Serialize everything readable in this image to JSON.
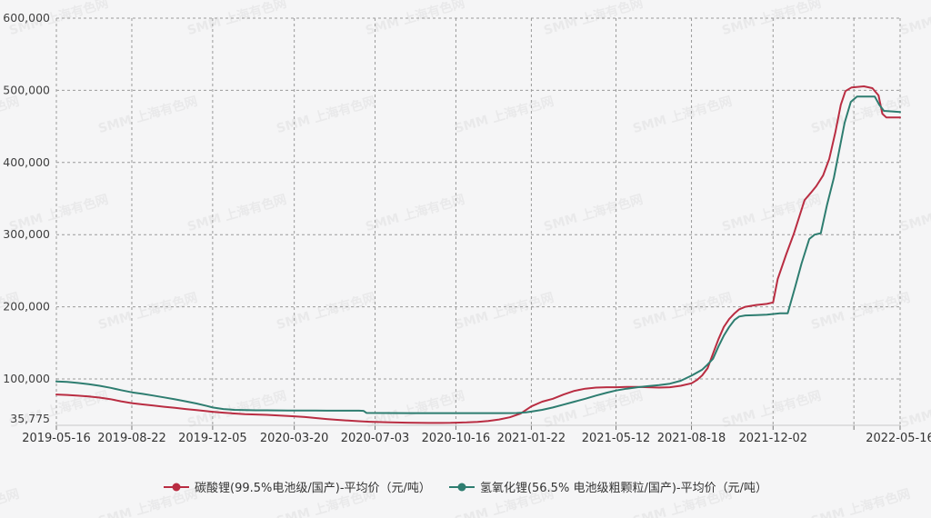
{
  "watermark": {
    "text": "SMM 上海有色网"
  },
  "chart_data": {
    "type": "line",
    "title": "",
    "grid": "dashed",
    "legend_position": "bottom",
    "x_axis": {
      "start_date": "2019-05-16",
      "end_date": "2022-05-16",
      "total_days": 1096,
      "tick_days": [
        0,
        98,
        203,
        309,
        414,
        519,
        617,
        727,
        825,
        931,
        1096
      ],
      "tick_labels": [
        "2019-05-16",
        "2019-08-22",
        "2019-12-05",
        "2020-03-20",
        "2020-07-03",
        "2020-10-16",
        "2021-01-22",
        "2021-05-12",
        "2021-08-18",
        "2021-12-02",
        "2022-05-16"
      ],
      "unlabeled_tick_days": [
        1036
      ]
    },
    "y_axis": {
      "min": 35775,
      "max": 600000,
      "ticks": [
        600000,
        500000,
        400000,
        300000,
        200000,
        100000,
        35775
      ],
      "tick_labels": [
        "600,000",
        "500,000",
        "400,000",
        "300,000",
        "200,000",
        "100,000",
        "35,775"
      ]
    },
    "series": [
      {
        "name": "碳酸锂(99.5%电池级/国产)-平均价（元/吨）",
        "color": "#b92d42",
        "points": [
          [
            0,
            78500
          ],
          [
            14,
            77800
          ],
          [
            28,
            76800
          ],
          [
            42,
            75800
          ],
          [
            56,
            74200
          ],
          [
            70,
            72000
          ],
          [
            84,
            69000
          ],
          [
            98,
            66500
          ],
          [
            112,
            64800
          ],
          [
            126,
            63200
          ],
          [
            140,
            61500
          ],
          [
            154,
            60000
          ],
          [
            168,
            58300
          ],
          [
            182,
            56800
          ],
          [
            196,
            55300
          ],
          [
            203,
            54500
          ],
          [
            217,
            53300
          ],
          [
            231,
            52200
          ],
          [
            245,
            51300
          ],
          [
            259,
            50700
          ],
          [
            273,
            50200
          ],
          [
            287,
            49500
          ],
          [
            301,
            48800
          ],
          [
            309,
            48300
          ],
          [
            323,
            47200
          ],
          [
            337,
            45800
          ],
          [
            351,
            44500
          ],
          [
            365,
            43300
          ],
          [
            379,
            42300
          ],
          [
            393,
            41400
          ],
          [
            407,
            40700
          ],
          [
            414,
            40400
          ],
          [
            428,
            40000
          ],
          [
            442,
            39700
          ],
          [
            456,
            39400
          ],
          [
            470,
            39200
          ],
          [
            484,
            39100
          ],
          [
            498,
            39100
          ],
          [
            512,
            39200
          ],
          [
            519,
            39400
          ],
          [
            533,
            39800
          ],
          [
            547,
            40500
          ],
          [
            561,
            41800
          ],
          [
            575,
            43800
          ],
          [
            589,
            46800
          ],
          [
            603,
            52000
          ],
          [
            617,
            62000
          ],
          [
            631,
            68500
          ],
          [
            645,
            72500
          ],
          [
            659,
            78500
          ],
          [
            673,
            83500
          ],
          [
            687,
            86500
          ],
          [
            701,
            88000
          ],
          [
            715,
            88500
          ],
          [
            727,
            88500
          ],
          [
            741,
            89000
          ],
          [
            755,
            89000
          ],
          [
            769,
            88500
          ],
          [
            783,
            88000
          ],
          [
            797,
            88500
          ],
          [
            811,
            90500
          ],
          [
            825,
            94000
          ],
          [
            832,
            98500
          ],
          [
            839,
            105000
          ],
          [
            846,
            115000
          ],
          [
            853,
            135000
          ],
          [
            860,
            155000
          ],
          [
            867,
            172000
          ],
          [
            874,
            183000
          ],
          [
            881,
            191000
          ],
          [
            887,
            196500
          ],
          [
            895,
            200000
          ],
          [
            909,
            202500
          ],
          [
            923,
            204000
          ],
          [
            931,
            206000
          ],
          [
            937,
            238500
          ],
          [
            948,
            272500
          ],
          [
            958,
            301500
          ],
          [
            972,
            348000
          ],
          [
            980,
            358000
          ],
          [
            987,
            367000
          ],
          [
            996,
            382000
          ],
          [
            1004,
            405000
          ],
          [
            1012,
            442500
          ],
          [
            1019,
            480000
          ],
          [
            1025,
            499000
          ],
          [
            1033,
            504000
          ],
          [
            1049,
            505500
          ],
          [
            1060,
            503000
          ],
          [
            1068,
            493000
          ],
          [
            1073,
            467500
          ],
          [
            1078,
            462500
          ],
          [
            1096,
            462500
          ]
        ]
      },
      {
        "name": "氢氧化锂(56.5% 电池级粗颗粒/国产)-平均价（元/吨）",
        "color": "#2e7d70",
        "points": [
          [
            0,
            96500
          ],
          [
            14,
            95800
          ],
          [
            28,
            94500
          ],
          [
            42,
            92800
          ],
          [
            56,
            90500
          ],
          [
            70,
            87800
          ],
          [
            84,
            84500
          ],
          [
            98,
            81500
          ],
          [
            112,
            79300
          ],
          [
            126,
            77000
          ],
          [
            140,
            74500
          ],
          [
            154,
            71800
          ],
          [
            168,
            69000
          ],
          [
            182,
            66000
          ],
          [
            196,
            62500
          ],
          [
            203,
            60500
          ],
          [
            217,
            58300
          ],
          [
            231,
            57200
          ],
          [
            245,
            56800
          ],
          [
            259,
            56600
          ],
          [
            273,
            56500
          ],
          [
            287,
            56400
          ],
          [
            301,
            56300
          ],
          [
            309,
            56300
          ],
          [
            323,
            56200
          ],
          [
            337,
            56200
          ],
          [
            351,
            56100
          ],
          [
            365,
            56100
          ],
          [
            379,
            56000
          ],
          [
            393,
            56000
          ],
          [
            399,
            55800
          ],
          [
            403,
            52900
          ],
          [
            428,
            52800
          ],
          [
            456,
            52700
          ],
          [
            484,
            52700
          ],
          [
            512,
            52700
          ],
          [
            519,
            52700
          ],
          [
            547,
            52700
          ],
          [
            575,
            52700
          ],
          [
            598,
            52800
          ],
          [
            610,
            53800
          ],
          [
            617,
            54800
          ],
          [
            631,
            57200
          ],
          [
            645,
            60500
          ],
          [
            659,
            64500
          ],
          [
            673,
            68500
          ],
          [
            687,
            72500
          ],
          [
            701,
            77000
          ],
          [
            715,
            81000
          ],
          [
            727,
            84000
          ],
          [
            741,
            86500
          ],
          [
            755,
            88500
          ],
          [
            769,
            90000
          ],
          [
            783,
            91500
          ],
          [
            797,
            93500
          ],
          [
            811,
            97500
          ],
          [
            825,
            104500
          ],
          [
            839,
            113000
          ],
          [
            846,
            120000
          ],
          [
            853,
            128000
          ],
          [
            860,
            145000
          ],
          [
            867,
            160000
          ],
          [
            874,
            172000
          ],
          [
            881,
            182000
          ],
          [
            887,
            186500
          ],
          [
            895,
            188000
          ],
          [
            909,
            188500
          ],
          [
            923,
            189000
          ],
          [
            940,
            191000
          ],
          [
            950,
            191000
          ],
          [
            960,
            228500
          ],
          [
            968,
            260000
          ],
          [
            978,
            294000
          ],
          [
            985,
            300000
          ],
          [
            993,
            302000
          ],
          [
            1001,
            341000
          ],
          [
            1010,
            379000
          ],
          [
            1017,
            417000
          ],
          [
            1024,
            455000
          ],
          [
            1032,
            484000
          ],
          [
            1040,
            491500
          ],
          [
            1063,
            491500
          ],
          [
            1069,
            480000
          ],
          [
            1075,
            471500
          ],
          [
            1096,
            470000
          ]
        ]
      }
    ]
  }
}
